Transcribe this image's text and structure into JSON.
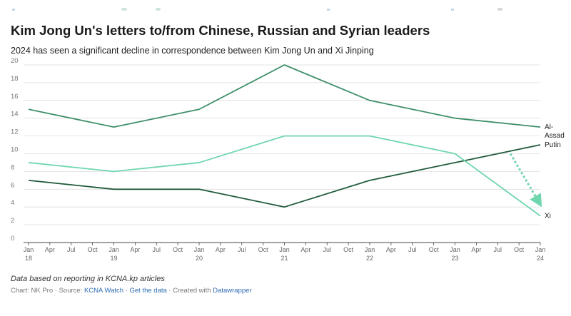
{
  "title": "Kim Jong Un's letters to/from Chinese, Russian and Syrian leaders",
  "subtitle": "2024 has seen a significant decline in correspondence between Kim Jong Un and Xi Jinping",
  "footer": {
    "note": "Data based on reporting in KCNA.kp articles",
    "chart_prefix": "Chart: NK Pro · Source: ",
    "source_link": "KCNA Watch",
    "separator1": " · ",
    "data_link": "Get the data",
    "created_text": " · Created with ",
    "tool_link": "Datawrapper"
  },
  "colors": {
    "al_assad": "#3f8f6b",
    "xi": "#6fd6ad",
    "putin": "#1f5a3b",
    "grid": "#dddddd",
    "link": "#2f6db5"
  },
  "chart_data": {
    "type": "line",
    "title": "Kim Jong Un's letters to/from Chinese, Russian and Syrian leaders",
    "xlabel": "",
    "ylabel": "",
    "ylim": [
      0,
      20
    ],
    "yticks": [
      0,
      2,
      4,
      6,
      8,
      10,
      12,
      14,
      16,
      18,
      20
    ],
    "xlim": [
      2018,
      2024
    ],
    "grid": true,
    "x_ticks": [
      {
        "x": 2018.0,
        "label": [
          "Jan",
          "18"
        ]
      },
      {
        "x": 2018.25,
        "label": [
          "Apr"
        ]
      },
      {
        "x": 2018.5,
        "label": [
          "Jul"
        ]
      },
      {
        "x": 2018.75,
        "label": [
          "Oct"
        ]
      },
      {
        "x": 2019.0,
        "label": [
          "Jan",
          "19"
        ]
      },
      {
        "x": 2019.25,
        "label": [
          "Apr"
        ]
      },
      {
        "x": 2019.5,
        "label": [
          "Jul"
        ]
      },
      {
        "x": 2019.75,
        "label": [
          "Oct"
        ]
      },
      {
        "x": 2020.0,
        "label": [
          "Jan",
          "20"
        ]
      },
      {
        "x": 2020.25,
        "label": [
          "Apr"
        ]
      },
      {
        "x": 2020.5,
        "label": [
          "Jul"
        ]
      },
      {
        "x": 2020.75,
        "label": [
          "Oct"
        ]
      },
      {
        "x": 2021.0,
        "label": [
          "Jan",
          "21"
        ]
      },
      {
        "x": 2021.25,
        "label": [
          "Apr"
        ]
      },
      {
        "x": 2021.5,
        "label": [
          "Jul"
        ]
      },
      {
        "x": 2021.75,
        "label": [
          "Oct"
        ]
      },
      {
        "x": 2022.0,
        "label": [
          "Jan",
          "22"
        ]
      },
      {
        "x": 2022.25,
        "label": [
          "Apr"
        ]
      },
      {
        "x": 2022.5,
        "label": [
          "Jul"
        ]
      },
      {
        "x": 2022.75,
        "label": [
          "Oct"
        ]
      },
      {
        "x": 2023.0,
        "label": [
          "Jan",
          "23"
        ]
      },
      {
        "x": 2023.25,
        "label": [
          "Apr"
        ]
      },
      {
        "x": 2023.5,
        "label": [
          "Jul"
        ]
      },
      {
        "x": 2023.75,
        "label": [
          "Oct"
        ]
      },
      {
        "x": 2024.0,
        "label": [
          "Jan",
          "24"
        ]
      }
    ],
    "x": [
      2018,
      2019,
      2020,
      2021,
      2022,
      2023,
      2024
    ],
    "series": [
      {
        "name": "Al-Assad",
        "label_lines": [
          "Al-",
          "Assad"
        ],
        "color_key": "al_assad",
        "values": [
          15,
          13,
          15,
          20,
          16,
          14,
          13
        ]
      },
      {
        "name": "Putin",
        "label_lines": [
          "Putin"
        ],
        "color_key": "putin",
        "values": [
          7,
          6,
          6,
          4,
          7,
          9,
          11
        ]
      },
      {
        "name": "Xi",
        "label_lines": [
          "Xi"
        ],
        "color_key": "xi",
        "values": [
          9,
          8,
          9,
          12,
          12,
          10,
          3
        ]
      }
    ],
    "annotations": [
      {
        "type": "dotted-arrow",
        "from": [
          2023.65,
          10
        ],
        "to": [
          2023.98,
          4.6
        ],
        "color_key": "xi"
      }
    ]
  }
}
